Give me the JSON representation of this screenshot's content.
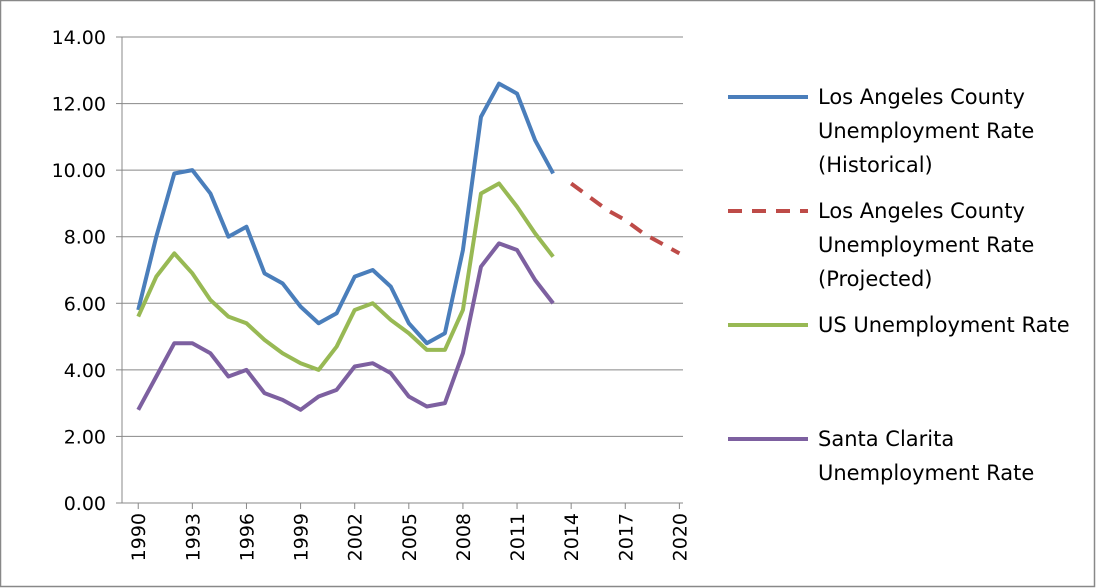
{
  "chart_data": {
    "type": "line",
    "x": [
      1990,
      1991,
      1992,
      1993,
      1994,
      1995,
      1996,
      1997,
      1998,
      1999,
      2000,
      2001,
      2002,
      2003,
      2004,
      2005,
      2006,
      2007,
      2008,
      2009,
      2010,
      2011,
      2012,
      2013,
      2014,
      2015,
      2016,
      2017,
      2018,
      2019,
      2020
    ],
    "series": [
      {
        "name": "Los Angeles County Unemployment Rate (Historical)",
        "color": "#4a7ebb",
        "line_style": "solid",
        "values": [
          5.8,
          8.0,
          9.9,
          10.0,
          9.3,
          8.0,
          8.3,
          6.9,
          6.6,
          5.9,
          5.4,
          5.7,
          6.8,
          7.0,
          6.5,
          5.4,
          4.8,
          5.1,
          7.6,
          11.6,
          12.6,
          12.3,
          10.9,
          9.9,
          null,
          null,
          null,
          null,
          null,
          null,
          null
        ]
      },
      {
        "name": "Los Angeles County Unemployment Rate (Projected)",
        "color": "#be4b48",
        "line_style": "dashed",
        "values": [
          null,
          null,
          null,
          null,
          null,
          null,
          null,
          null,
          null,
          null,
          null,
          null,
          null,
          null,
          null,
          null,
          null,
          null,
          null,
          null,
          null,
          null,
          null,
          null,
          9.6,
          9.2,
          8.8,
          8.5,
          8.1,
          7.8,
          7.5
        ]
      },
      {
        "name": "US Unemployment Rate",
        "color": "#98b954",
        "line_style": "solid",
        "values": [
          5.6,
          6.8,
          7.5,
          6.9,
          6.1,
          5.6,
          5.4,
          4.9,
          4.5,
          4.2,
          4.0,
          4.7,
          5.8,
          6.0,
          5.5,
          5.1,
          4.6,
          4.6,
          5.8,
          9.3,
          9.6,
          8.9,
          8.1,
          7.4,
          null,
          null,
          null,
          null,
          null,
          null,
          null
        ]
      },
      {
        "name": "Santa Clarita Unemployment Rate",
        "color": "#7d60a0",
        "line_style": "solid",
        "values": [
          2.8,
          3.8,
          4.8,
          4.8,
          4.5,
          3.8,
          4.0,
          3.3,
          3.1,
          2.8,
          3.2,
          3.4,
          4.1,
          4.2,
          3.9,
          3.2,
          2.9,
          3.0,
          4.5,
          7.1,
          7.8,
          7.6,
          6.7,
          6.0,
          null,
          null,
          null,
          null,
          null,
          null,
          null
        ]
      }
    ],
    "xlim": [
      1989.1,
      2020.2
    ],
    "xticks": [
      1990,
      1993,
      1996,
      1999,
      2002,
      2005,
      2008,
      2011,
      2014,
      2017,
      2020
    ],
    "ylim": [
      0,
      14
    ],
    "yticks": [
      {
        "value": 0,
        "label": "0.00"
      },
      {
        "value": 2,
        "label": "2.00"
      },
      {
        "value": 4,
        "label": "4.00"
      },
      {
        "value": 6,
        "label": "6.00"
      },
      {
        "value": 8,
        "label": "8.00"
      },
      {
        "value": 10,
        "label": "10.00"
      },
      {
        "value": 12,
        "label": "12.00"
      },
      {
        "value": 14,
        "label": "14.00"
      }
    ],
    "grid": true,
    "legend": "right"
  }
}
